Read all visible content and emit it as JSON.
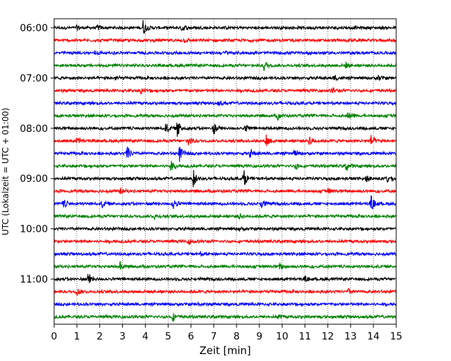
{
  "chart_data": {
    "type": "line",
    "title": "",
    "xlabel": "Zeit  [min]",
    "ylabel": "UTC (Lokalzeit = UTC + 01:00)",
    "xlim": [
      0,
      15
    ],
    "x_ticks": [
      "0",
      "1",
      "2",
      "3",
      "4",
      "5",
      "6",
      "7",
      "8",
      "9",
      "10",
      "11",
      "12",
      "13",
      "14",
      "15"
    ],
    "y_ticks": [
      {
        "label": "06:00",
        "trace": 0
      },
      {
        "label": "07:00",
        "trace": 4
      },
      {
        "label": "08:00",
        "trace": 8
      },
      {
        "label": "09:00",
        "trace": 12
      },
      {
        "label": "10:00",
        "trace": 16
      },
      {
        "label": "11:00",
        "trace": 20
      }
    ],
    "grid": "vertical dotted at each minute",
    "trace_interval_min": 15,
    "trace_colors": [
      "#000000",
      "#ff0000",
      "#0000ff",
      "#008000"
    ],
    "traces": [
      {
        "start": "06:00",
        "color": "#000000",
        "events": [
          {
            "t": 1.0,
            "a": 0.25
          },
          {
            "t": 1.9,
            "a": 0.3
          },
          {
            "t": 3.9,
            "a": 0.9
          },
          {
            "t": 5.6,
            "a": 0.45
          }
        ]
      },
      {
        "start": "06:15",
        "color": "#ff0000",
        "events": [
          {
            "t": 5.7,
            "a": 0.2
          }
        ]
      },
      {
        "start": "06:30",
        "color": "#0000ff",
        "events": [
          {
            "t": 1.8,
            "a": 0.2
          },
          {
            "t": 7.5,
            "a": 0.2
          }
        ]
      },
      {
        "start": "06:45",
        "color": "#008000",
        "events": [
          {
            "t": 9.2,
            "a": 0.55
          },
          {
            "t": 12.8,
            "a": 0.3
          }
        ]
      },
      {
        "start": "07:00",
        "color": "#000000",
        "events": [
          {
            "t": 2.7,
            "a": 0.3
          },
          {
            "t": 12.3,
            "a": 0.3
          },
          {
            "t": 14.2,
            "a": 0.35
          }
        ]
      },
      {
        "start": "07:15",
        "color": "#ff0000",
        "events": [
          {
            "t": 3.8,
            "a": 0.3
          },
          {
            "t": 12.2,
            "a": 0.3
          }
        ]
      },
      {
        "start": "07:30",
        "color": "#0000ff",
        "events": [
          {
            "t": 7.2,
            "a": 0.2
          }
        ]
      },
      {
        "start": "07:45",
        "color": "#008000",
        "events": [
          {
            "t": 9.8,
            "a": 0.45
          },
          {
            "t": 12.9,
            "a": 0.7
          }
        ]
      },
      {
        "start": "08:00",
        "color": "#000000",
        "events": [
          {
            "t": 4.9,
            "a": 0.6
          },
          {
            "t": 5.4,
            "a": 0.95
          },
          {
            "t": 7.0,
            "a": 0.75
          },
          {
            "t": 8.4,
            "a": 0.5
          }
        ]
      },
      {
        "start": "08:15",
        "color": "#ff0000",
        "events": [
          {
            "t": 1.0,
            "a": 0.4
          },
          {
            "t": 5.9,
            "a": 0.7
          },
          {
            "t": 9.3,
            "a": 0.85
          },
          {
            "t": 11.2,
            "a": 0.6
          },
          {
            "t": 13.9,
            "a": 0.7
          }
        ]
      },
      {
        "start": "08:30",
        "color": "#0000ff",
        "events": [
          {
            "t": 3.2,
            "a": 0.9
          },
          {
            "t": 5.5,
            "a": 0.95
          },
          {
            "t": 8.6,
            "a": 0.55
          },
          {
            "t": 10.5,
            "a": 0.4
          }
        ]
      },
      {
        "start": "08:45",
        "color": "#008000",
        "events": [
          {
            "t": 5.1,
            "a": 0.7
          },
          {
            "t": 10.6,
            "a": 0.4
          },
          {
            "t": 12.8,
            "a": 0.65
          }
        ]
      },
      {
        "start": "09:00",
        "color": "#000000",
        "events": [
          {
            "t": 6.1,
            "a": 1.0
          },
          {
            "t": 8.3,
            "a": 1.1
          },
          {
            "t": 13.7,
            "a": 0.4
          },
          {
            "t": 14.6,
            "a": 0.5
          }
        ]
      },
      {
        "start": "09:15",
        "color": "#ff0000",
        "events": [
          {
            "t": 2.9,
            "a": 0.3
          },
          {
            "t": 12.0,
            "a": 0.3
          }
        ]
      },
      {
        "start": "09:30",
        "color": "#0000ff",
        "events": [
          {
            "t": 0.4,
            "a": 0.55
          },
          {
            "t": 2.1,
            "a": 0.45
          },
          {
            "t": 5.2,
            "a": 0.75
          },
          {
            "t": 9.1,
            "a": 0.55
          },
          {
            "t": 13.9,
            "a": 0.9
          }
        ]
      },
      {
        "start": "09:45",
        "color": "#008000",
        "events": [
          {
            "t": 4.4,
            "a": 0.25
          },
          {
            "t": 8.1,
            "a": 0.35
          }
        ]
      },
      {
        "start": "10:00",
        "color": "#000000",
        "events": [
          {
            "t": 8.1,
            "a": 0.2
          }
        ]
      },
      {
        "start": "10:15",
        "color": "#ff0000",
        "events": [
          {
            "t": 5.9,
            "a": 0.3
          }
        ]
      },
      {
        "start": "10:30",
        "color": "#0000ff",
        "events": [
          {
            "t": 6.4,
            "a": 0.2
          }
        ]
      },
      {
        "start": "10:45",
        "color": "#008000",
        "events": [
          {
            "t": 2.9,
            "a": 0.55
          },
          {
            "t": 9.9,
            "a": 0.4
          }
        ]
      },
      {
        "start": "11:00",
        "color": "#000000",
        "events": [
          {
            "t": 1.5,
            "a": 0.8
          },
          {
            "t": 11.0,
            "a": 0.25
          }
        ]
      },
      {
        "start": "11:15",
        "color": "#ff0000",
        "events": [
          {
            "t": 1.0,
            "a": 0.4
          },
          {
            "t": 12.9,
            "a": 0.3
          }
        ]
      },
      {
        "start": "11:30",
        "color": "#0000ff",
        "events": [
          {
            "t": 6.3,
            "a": 0.2
          }
        ]
      },
      {
        "start": "11:45",
        "color": "#008000",
        "events": [
          {
            "t": 5.2,
            "a": 0.45
          },
          {
            "t": 9.8,
            "a": 0.25
          }
        ]
      }
    ]
  }
}
